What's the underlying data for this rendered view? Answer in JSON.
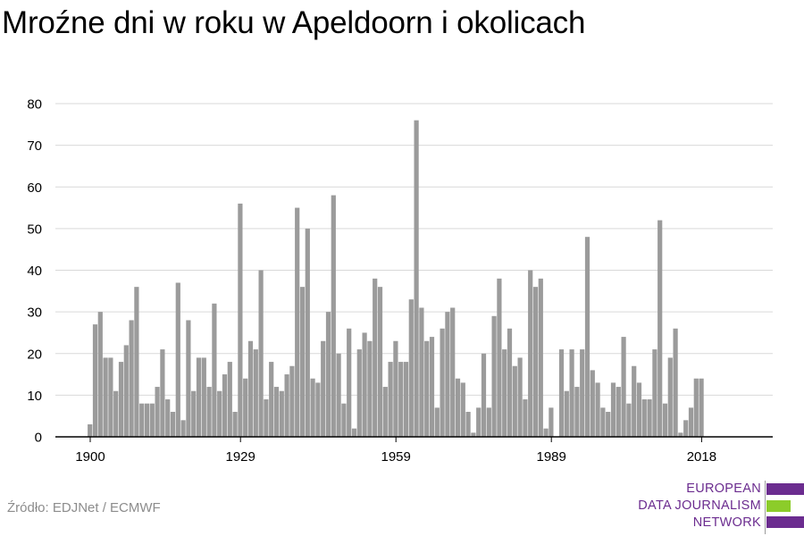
{
  "colors": {
    "bar": "#9b9b9b",
    "grid": "#d9d9d9",
    "axis": "#000000",
    "logo_text": "#6b2c8f",
    "logo_purple": "#6b2c8f",
    "logo_green": "#8ccc2a"
  },
  "chart_data": {
    "type": "bar",
    "title": "Mroźne dni w roku w Apeldoorn i okolicach",
    "xlabel": "",
    "ylabel": "",
    "ylim": [
      0,
      80
    ],
    "yticks": [
      0,
      10,
      20,
      30,
      40,
      50,
      60,
      70,
      80
    ],
    "xticks": [
      "1900",
      "1929",
      "1959",
      "1989",
      "2018"
    ],
    "grid": true,
    "x": [
      1900,
      1901,
      1902,
      1903,
      1904,
      1905,
      1906,
      1907,
      1908,
      1909,
      1910,
      1911,
      1912,
      1913,
      1914,
      1915,
      1916,
      1917,
      1918,
      1919,
      1920,
      1921,
      1922,
      1923,
      1924,
      1925,
      1926,
      1927,
      1928,
      1929,
      1930,
      1931,
      1932,
      1933,
      1934,
      1935,
      1936,
      1937,
      1938,
      1939,
      1940,
      1941,
      1942,
      1943,
      1944,
      1945,
      1946,
      1947,
      1948,
      1949,
      1950,
      1951,
      1952,
      1953,
      1954,
      1955,
      1956,
      1957,
      1958,
      1959,
      1960,
      1961,
      1962,
      1963,
      1964,
      1965,
      1966,
      1967,
      1968,
      1969,
      1970,
      1971,
      1972,
      1973,
      1974,
      1975,
      1976,
      1977,
      1978,
      1979,
      1980,
      1981,
      1982,
      1983,
      1984,
      1985,
      1986,
      1987,
      1988,
      1989,
      1990,
      1991,
      1992,
      1993,
      1994,
      1995,
      1996,
      1997,
      1998,
      1999,
      2000,
      2001,
      2002,
      2003,
      2004,
      2005,
      2006,
      2007,
      2008,
      2009,
      2010,
      2011,
      2012,
      2013,
      2014,
      2015,
      2016,
      2017,
      2018
    ],
    "values": [
      3,
      27,
      30,
      19,
      19,
      11,
      18,
      22,
      28,
      36,
      8,
      8,
      8,
      12,
      21,
      9,
      6,
      37,
      4,
      28,
      11,
      19,
      19,
      12,
      32,
      11,
      15,
      18,
      6,
      56,
      14,
      23,
      21,
      40,
      9,
      18,
      12,
      11,
      15,
      17,
      55,
      36,
      50,
      14,
      13,
      23,
      30,
      58,
      20,
      8,
      26,
      2,
      21,
      25,
      23,
      38,
      36,
      12,
      18,
      23,
      18,
      18,
      33,
      76,
      31,
      23,
      24,
      7,
      26,
      30,
      31,
      14,
      13,
      6,
      1,
      7,
      20,
      7,
      29,
      38,
      21,
      26,
      17,
      19,
      9,
      40,
      36,
      38,
      2,
      7,
      0,
      21,
      11,
      21,
      12,
      21,
      48,
      16,
      13,
      7,
      6,
      13,
      12,
      24,
      8,
      17,
      13,
      9,
      9,
      21,
      52,
      8,
      19,
      26,
      1,
      4,
      7,
      14,
      14
    ]
  },
  "source": "Źródło: EDJNet / ECMWF",
  "logo": {
    "line1": "EUROPEAN",
    "line2": "DATA JOURNALISM",
    "line3": "NETWORK"
  }
}
